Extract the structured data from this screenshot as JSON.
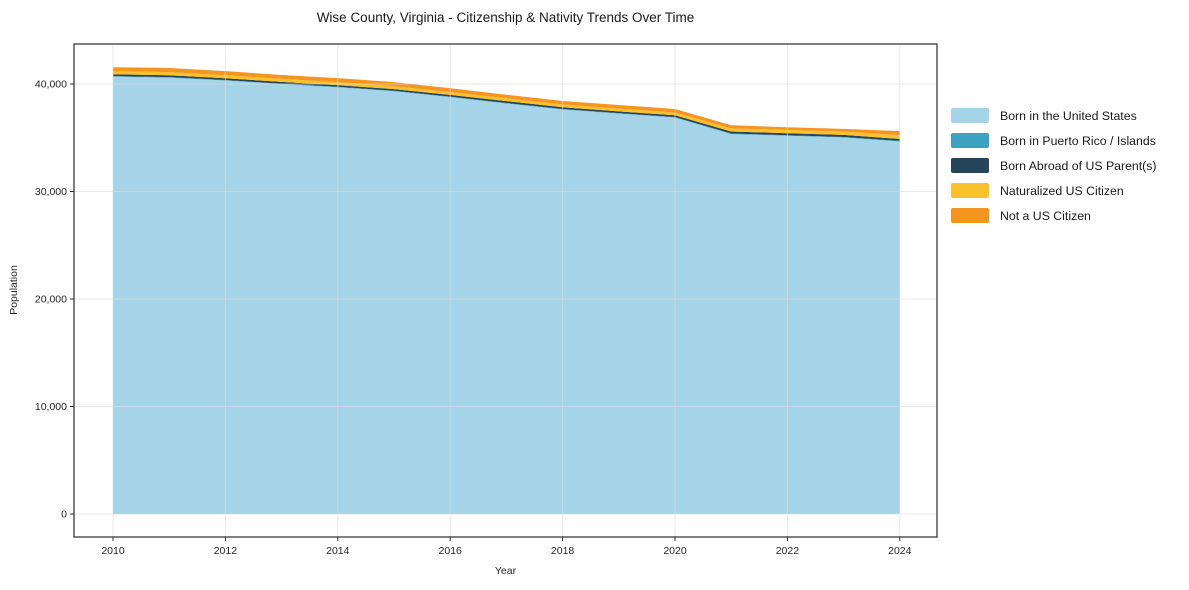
{
  "chart_data": {
    "type": "area",
    "stacked": true,
    "title": "Wise County, Virginia - Citizenship & Nativity Trends Over Time",
    "xlabel": "Year",
    "ylabel": "Population",
    "legend_position": "right-outside",
    "grid": true,
    "x": [
      2010,
      2011,
      2012,
      2013,
      2014,
      2015,
      2016,
      2017,
      2018,
      2019,
      2020,
      2021,
      2022,
      2023,
      2024
    ],
    "series": [
      {
        "key": "born-us",
        "name": "Born in the United States",
        "color": "#A5D3E7",
        "values": [
          40690,
          40600,
          40330,
          39990,
          39700,
          39330,
          38780,
          38190,
          37630,
          37250,
          36880,
          35340,
          35180,
          35020,
          34650
        ]
      },
      {
        "key": "born-pr-islands",
        "name": "Born in Puerto Rico / Islands",
        "color": "#3DA2C1",
        "values": [
          45,
          45,
          40,
          40,
          40,
          40,
          45,
          45,
          40,
          40,
          45,
          55,
          55,
          50,
          55
        ]
      },
      {
        "key": "born-abroad",
        "name": "Born Abroad of US Parent(s)",
        "color": "#25465A",
        "values": [
          180,
          175,
          170,
          165,
          160,
          160,
          165,
          170,
          165,
          160,
          165,
          185,
          190,
          195,
          185
        ]
      },
      {
        "key": "naturalized",
        "name": "Naturalized US Citizen",
        "color": "#FBC12D",
        "values": [
          280,
          285,
          280,
          275,
          280,
          270,
          265,
          265,
          270,
          265,
          260,
          290,
          300,
          320,
          355
        ]
      },
      {
        "key": "not-citizen",
        "name": "Not a US Citizen",
        "color": "#F5941F",
        "values": [
          370,
          385,
          380,
          365,
          370,
          380,
          350,
          335,
          315,
          330,
          320,
          290,
          260,
          240,
          370
        ]
      }
    ],
    "xticks": {
      "values": [
        2010,
        2012,
        2014,
        2016,
        2018,
        2020,
        2022,
        2024
      ],
      "labels": [
        "2010",
        "2012",
        "2014",
        "2016",
        "2018",
        "2020",
        "2022",
        "2024"
      ]
    },
    "yticks": {
      "values": [
        0,
        10000,
        20000,
        30000,
        40000
      ],
      "labels": [
        "0",
        "10,000",
        "20,000",
        "30,000",
        "40,000"
      ]
    },
    "ylim": [
      0,
      43700
    ]
  }
}
